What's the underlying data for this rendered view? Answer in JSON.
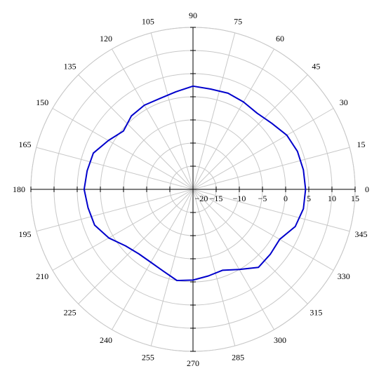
{
  "chart_data": {
    "type": "line",
    "projection": "polar",
    "angle_ticks": [
      "0",
      "15",
      "30",
      "45",
      "60",
      "75",
      "90",
      "105",
      "120",
      "135",
      "150",
      "165",
      "180",
      "195",
      "210",
      "225",
      "240",
      "255",
      "270",
      "285",
      "300",
      "315",
      "330",
      "345"
    ],
    "angle_tick_values": [
      0,
      15,
      30,
      45,
      60,
      75,
      90,
      105,
      120,
      135,
      150,
      165,
      180,
      195,
      210,
      225,
      240,
      255,
      270,
      285,
      300,
      315,
      330,
      345
    ],
    "radial_ticks": [
      "-20",
      "-15",
      "-10",
      "-5",
      "0",
      "5",
      "10",
      "15"
    ],
    "radial_tick_values": [
      -20,
      -15,
      -10,
      -5,
      0,
      5,
      10,
      15
    ],
    "rlim": [
      -20,
      15
    ],
    "grid": true,
    "series": [
      {
        "color": "#0000cc",
        "angle_deg": [
          0,
          10,
          20,
          30,
          40,
          50,
          60,
          70,
          80,
          90,
          100,
          110,
          120,
          130,
          140,
          150,
          160,
          170,
          180,
          190,
          200,
          210,
          220,
          230,
          240,
          250,
          260,
          270,
          280,
          290,
          300,
          310,
          320,
          330,
          340,
          350
        ],
        "values": [
          4.3,
          4.2,
          4.0,
          3.4,
          2.2,
          1.5,
          1.8,
          2.1,
          2.0,
          2.3,
          1.4,
          0.9,
          1.0,
          0.7,
          -0.4,
          1.1,
          2.9,
          3.2,
          3.5,
          3.0,
          2.6,
          1.0,
          -1.0,
          -1.8,
          -1.8,
          -1.2,
          0.0,
          -0.4,
          -1.0,
          -1.4,
          0.0,
          2.0,
          1.8,
          1.6,
          3.5,
          4.2
        ]
      }
    ],
    "colors": {
      "grid": "#c8c8c8",
      "axis": "#000000",
      "series": "#0000cc"
    }
  }
}
